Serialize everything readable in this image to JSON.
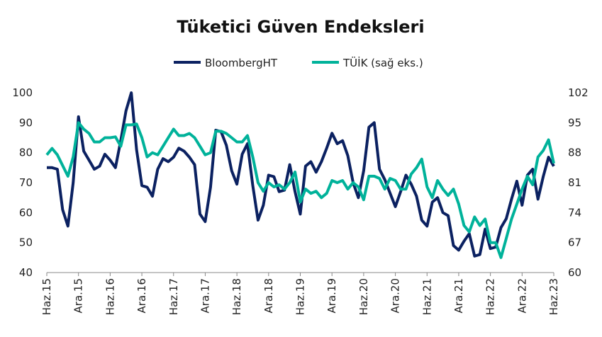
{
  "chart_data": {
    "type": "line",
    "title": "Tüketici Güven Endeksleri",
    "categories": [
      "Haz.15",
      null,
      null,
      null,
      null,
      null,
      "Ara.15",
      null,
      null,
      null,
      null,
      null,
      "Haz.16",
      null,
      null,
      null,
      null,
      null,
      "Ara.16",
      null,
      null,
      null,
      null,
      null,
      "Haz.17",
      null,
      null,
      null,
      null,
      null,
      "Ara.17",
      null,
      null,
      null,
      null,
      null,
      "Haz.18",
      null,
      null,
      null,
      null,
      null,
      "Ara.18",
      null,
      null,
      null,
      null,
      null,
      "Haz.19",
      null,
      null,
      null,
      null,
      null,
      "Ara.19",
      null,
      null,
      null,
      null,
      null,
      "Haz.20",
      null,
      null,
      null,
      null,
      null,
      "Ara.20",
      null,
      null,
      null,
      null,
      null,
      "Haz.21",
      null,
      null,
      null,
      null,
      null,
      "Ara.21",
      null,
      null,
      null,
      null,
      null,
      "Haz.22",
      null,
      null,
      null,
      null,
      null,
      "Ara.22",
      null,
      null,
      null,
      null,
      null,
      "Haz.23"
    ],
    "series": [
      {
        "name": "BloombergHT",
        "color": "#0b2161",
        "values": [
          75,
          75,
          74.5,
          61,
          55.5,
          70,
          92,
          80.5,
          77.5,
          74.5,
          75.5,
          79.5,
          77.5,
          75,
          84,
          94,
          100,
          81,
          69,
          68.5,
          65.5,
          74.5,
          78,
          77,
          78.5,
          81.5,
          80.5,
          78.5,
          76,
          59.5,
          57,
          68.5,
          87.5,
          87,
          82.5,
          74,
          69.5,
          79.5,
          83,
          69,
          57.5,
          62.5,
          72.5,
          72,
          67,
          67.5,
          76,
          67,
          59.5,
          75.5,
          77,
          73.5,
          77,
          81.5,
          86.5,
          83,
          84,
          79,
          70,
          65,
          74,
          88.5,
          90,
          74.5,
          71,
          66.5,
          62,
          67,
          72.5,
          69.5,
          65.5,
          57.5,
          55.5,
          63.5,
          65,
          60,
          59,
          49,
          47.5,
          50.5,
          53,
          45.5,
          46,
          54.5,
          48,
          48.5,
          55,
          58,
          64.5,
          70.5,
          62.5,
          72.5,
          74.5,
          64.5,
          72,
          78.5,
          75.5
        ]
      },
      {
        "name": "TÜİK (sağ eks.)",
        "color": "#00b29a",
        "axis": "y2",
        "values": [
          87.5,
          89,
          87.5,
          85,
          82.5,
          87,
          95,
          93.5,
          92.5,
          90.5,
          90.5,
          91.5,
          91.5,
          91.7,
          89.5,
          94.5,
          94.5,
          94.7,
          91.5,
          87,
          88,
          87.5,
          89.5,
          91.5,
          93.5,
          92,
          92,
          92.5,
          91.5,
          89.5,
          87.5,
          88,
          93,
          93,
          92.5,
          91.5,
          90.5,
          90.5,
          92,
          87,
          81,
          79,
          81,
          80,
          80.5,
          79.5,
          81,
          83.5,
          76.5,
          79.5,
          78.5,
          79,
          77.5,
          78.5,
          81.5,
          81,
          81.5,
          79.5,
          81,
          80,
          77,
          82.5,
          82.5,
          82,
          79.5,
          82,
          81.5,
          79.5,
          79.5,
          83,
          84.5,
          86.5,
          80,
          77.5,
          81.5,
          79.5,
          78,
          79.5,
          76,
          71,
          69.5,
          73,
          71,
          72.5,
          67,
          67,
          63.5,
          68,
          72.5,
          76,
          79.5,
          82.5,
          80.5,
          87,
          88.5,
          91,
          85.5
        ]
      }
    ],
    "ylim": [
      40,
      100
    ],
    "yticks": [
      40,
      50,
      60,
      70,
      80,
      90,
      100
    ],
    "y2lim": [
      60,
      102
    ],
    "y2ticks": [
      60,
      67,
      74,
      81,
      88,
      95,
      102
    ],
    "legend": "top"
  }
}
